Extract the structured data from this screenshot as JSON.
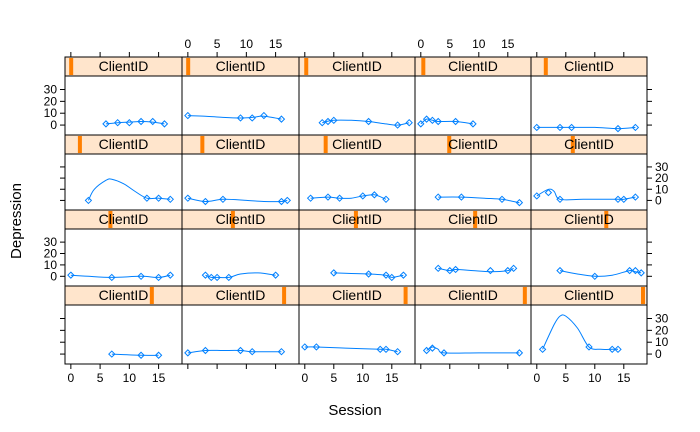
{
  "chart_data": {
    "type": "line",
    "layout": "lattice 5 columns x 4 rows, one panel per client",
    "xlabel": "Session",
    "ylabel": "Depression",
    "strip_label": "ClientID",
    "xlim": [
      -1,
      19
    ],
    "ylim": [
      -5,
      38
    ],
    "x_ticks": [
      "0",
      "5",
      "10",
      "15"
    ],
    "y_ticks": [
      "0",
      "10",
      "20",
      "30"
    ],
    "colors": {
      "strip_bg": "#FFE5CC",
      "strip_marker": "#FF7F00",
      "series": "#0080FF",
      "frame": "#000000"
    },
    "panels": [
      {
        "strip": "ClientID",
        "marker": 0.02,
        "points": [
          [
            6,
            1
          ],
          [
            8,
            2
          ],
          [
            10,
            2
          ],
          [
            12,
            3
          ],
          [
            14,
            3
          ],
          [
            16,
            1
          ]
        ],
        "curve": [
          [
            6,
            1
          ],
          [
            8,
            2
          ],
          [
            10,
            2.5
          ],
          [
            12,
            3
          ],
          [
            14,
            2.5
          ],
          [
            16,
            1
          ]
        ]
      },
      {
        "strip": "ClientID",
        "marker": 0.02,
        "points": [
          [
            0,
            8
          ],
          [
            9,
            6
          ],
          [
            11,
            6
          ],
          [
            13,
            8
          ],
          [
            16,
            5
          ]
        ],
        "curve": [
          [
            0,
            8
          ],
          [
            3,
            7.5
          ],
          [
            6,
            6.5
          ],
          [
            9,
            6
          ],
          [
            11,
            6.5
          ],
          [
            13,
            7.5
          ],
          [
            16,
            5
          ]
        ]
      },
      {
        "strip": "ClientID",
        "marker": 0.03,
        "points": [
          [
            3,
            2
          ],
          [
            4,
            3
          ],
          [
            5,
            4
          ],
          [
            11,
            3
          ],
          [
            16,
            0
          ],
          [
            18,
            2
          ]
        ],
        "curve": [
          [
            3,
            2
          ],
          [
            5,
            4
          ],
          [
            8,
            4
          ],
          [
            11,
            3
          ],
          [
            14,
            1
          ],
          [
            16,
            0
          ],
          [
            18,
            2
          ]
        ]
      },
      {
        "strip": "ClientID",
        "marker": 0.04,
        "points": [
          [
            0,
            1
          ],
          [
            1,
            5
          ],
          [
            2,
            4
          ],
          [
            3,
            3
          ],
          [
            6,
            3
          ],
          [
            9,
            1
          ]
        ],
        "curve": [
          [
            0,
            1
          ],
          [
            1,
            5
          ],
          [
            2,
            4
          ],
          [
            3,
            3
          ],
          [
            6,
            3
          ],
          [
            9,
            1
          ]
        ]
      },
      {
        "strip": "ClientID",
        "marker": 0.1,
        "points": [
          [
            0,
            -2
          ],
          [
            4,
            -2
          ],
          [
            6,
            -2
          ],
          [
            14,
            -3
          ],
          [
            17,
            -2
          ]
        ],
        "curve": [
          [
            0,
            -2
          ],
          [
            4,
            -2
          ],
          [
            6,
            -2
          ],
          [
            10,
            -2
          ],
          [
            14,
            -3
          ],
          [
            17,
            -2
          ]
        ]
      },
      {
        "strip": "ClientID",
        "marker": 0.1,
        "points": [
          [
            3,
            0
          ],
          [
            13,
            2
          ],
          [
            15,
            2
          ],
          [
            17,
            1
          ]
        ],
        "curve": [
          [
            3,
            0
          ],
          [
            4,
            10
          ],
          [
            6,
            18
          ],
          [
            7,
            19
          ],
          [
            9,
            15
          ],
          [
            11,
            8
          ],
          [
            13,
            2
          ],
          [
            15,
            2
          ],
          [
            17,
            1
          ]
        ]
      },
      {
        "strip": "ClientID",
        "marker": 0.15,
        "points": [
          [
            0,
            2
          ],
          [
            3,
            -1
          ],
          [
            6,
            1
          ],
          [
            16,
            -1
          ],
          [
            17,
            0
          ]
        ],
        "curve": [
          [
            0,
            2
          ],
          [
            3,
            -1
          ],
          [
            6,
            1
          ],
          [
            10,
            0
          ],
          [
            13,
            -1
          ],
          [
            16,
            -1
          ],
          [
            17,
            0
          ]
        ]
      },
      {
        "strip": "ClientID",
        "marker": 0.21,
        "points": [
          [
            1,
            2
          ],
          [
            4,
            3
          ],
          [
            6,
            2
          ],
          [
            10,
            4
          ],
          [
            12,
            5
          ],
          [
            14,
            1
          ]
        ],
        "curve": [
          [
            1,
            2
          ],
          [
            4,
            3
          ],
          [
            6,
            2
          ],
          [
            8,
            2
          ],
          [
            10,
            4
          ],
          [
            12,
            5
          ],
          [
            14,
            1
          ]
        ]
      },
      {
        "strip": "ClientID",
        "marker": 0.28,
        "points": [
          [
            3,
            3
          ],
          [
            7,
            3
          ],
          [
            14,
            1
          ],
          [
            17,
            -2
          ]
        ],
        "curve": [
          [
            3,
            3
          ],
          [
            7,
            3
          ],
          [
            11,
            2
          ],
          [
            14,
            1
          ],
          [
            16,
            -1
          ],
          [
            17,
            -2
          ]
        ]
      },
      {
        "strip": "ClientID",
        "marker": 0.35,
        "points": [
          [
            0,
            4
          ],
          [
            2,
            7
          ],
          [
            4,
            1
          ],
          [
            14,
            1
          ],
          [
            15,
            1
          ],
          [
            17,
            3
          ]
        ],
        "curve": [
          [
            0,
            4
          ],
          [
            2,
            10
          ],
          [
            3,
            8
          ],
          [
            4,
            1
          ],
          [
            8,
            1
          ],
          [
            14,
            1
          ],
          [
            15,
            1
          ],
          [
            17,
            3
          ]
        ]
      },
      {
        "strip": "ClientID",
        "marker": 0.38,
        "points": [
          [
            0,
            1
          ],
          [
            7,
            -1
          ],
          [
            12,
            0
          ],
          [
            15,
            -1
          ],
          [
            17,
            1
          ]
        ],
        "curve": [
          [
            0,
            1
          ],
          [
            3,
            0
          ],
          [
            7,
            -1
          ],
          [
            12,
            0
          ],
          [
            15,
            -1
          ],
          [
            17,
            1
          ]
        ]
      },
      {
        "strip": "ClientID",
        "marker": 0.43,
        "points": [
          [
            3,
            1
          ],
          [
            4,
            -1
          ],
          [
            5,
            -1
          ],
          [
            7,
            -1
          ],
          [
            15,
            1
          ]
        ],
        "curve": [
          [
            3,
            1
          ],
          [
            4,
            -1
          ],
          [
            5,
            -1
          ],
          [
            7,
            -1
          ],
          [
            9,
            2
          ],
          [
            12,
            3
          ],
          [
            15,
            1
          ]
        ]
      },
      {
        "strip": "ClientID",
        "marker": 0.49,
        "points": [
          [
            5,
            3
          ],
          [
            11,
            2
          ],
          [
            14,
            1
          ],
          [
            15,
            -1
          ],
          [
            17,
            1
          ]
        ],
        "curve": [
          [
            5,
            3
          ],
          [
            8,
            2.5
          ],
          [
            11,
            2
          ],
          [
            14,
            1
          ],
          [
            15,
            -1
          ],
          [
            17,
            1
          ]
        ]
      },
      {
        "strip": "ClientID",
        "marker": 0.52,
        "points": [
          [
            3,
            7
          ],
          [
            5,
            5
          ],
          [
            6,
            6
          ],
          [
            12,
            5
          ],
          [
            15,
            5
          ],
          [
            16,
            7
          ]
        ],
        "curve": [
          [
            3,
            7
          ],
          [
            5,
            5
          ],
          [
            6,
            6
          ],
          [
            9,
            5
          ],
          [
            12,
            4
          ],
          [
            15,
            5
          ],
          [
            16,
            7
          ]
        ]
      },
      {
        "strip": "ClientID",
        "marker": 0.66,
        "points": [
          [
            4,
            5
          ],
          [
            10,
            0
          ],
          [
            16,
            5
          ],
          [
            17,
            5
          ],
          [
            18,
            3
          ]
        ],
        "curve": [
          [
            4,
            5
          ],
          [
            7,
            2
          ],
          [
            10,
            0
          ],
          [
            13,
            1
          ],
          [
            16,
            5
          ],
          [
            17,
            4
          ],
          [
            18,
            3
          ]
        ]
      },
      {
        "strip": "ClientID",
        "marker": 0.76,
        "points": [
          [
            7,
            0
          ],
          [
            12,
            -1
          ],
          [
            15,
            -1
          ]
        ],
        "curve": [
          [
            7,
            0
          ],
          [
            12,
            -1
          ],
          [
            15,
            -1
          ]
        ]
      },
      {
        "strip": "ClientID",
        "marker": 0.9,
        "points": [
          [
            0,
            1
          ],
          [
            3,
            3
          ],
          [
            9,
            3
          ],
          [
            11,
            2
          ],
          [
            16,
            2
          ]
        ],
        "curve": [
          [
            0,
            1
          ],
          [
            3,
            3
          ],
          [
            6,
            3
          ],
          [
            9,
            3
          ],
          [
            11,
            2
          ],
          [
            16,
            2
          ]
        ]
      },
      {
        "strip": "ClientID",
        "marker": 0.95,
        "points": [
          [
            0,
            6
          ],
          [
            2,
            6
          ],
          [
            13,
            4
          ],
          [
            14,
            4
          ],
          [
            16,
            2
          ]
        ],
        "curve": [
          [
            0,
            6
          ],
          [
            2,
            6
          ],
          [
            7,
            5
          ],
          [
            13,
            4
          ],
          [
            14,
            4
          ],
          [
            16,
            2
          ]
        ]
      },
      {
        "strip": "ClientID",
        "marker": 0.98,
        "points": [
          [
            1,
            3
          ],
          [
            2,
            5
          ],
          [
            4,
            1
          ],
          [
            17,
            1
          ]
        ],
        "curve": [
          [
            1,
            3
          ],
          [
            2,
            6
          ],
          [
            3,
            4
          ],
          [
            4,
            1
          ],
          [
            10,
            1
          ],
          [
            17,
            1
          ]
        ]
      },
      {
        "strip": "ClientID",
        "marker": 1.0,
        "points": [
          [
            1,
            4
          ],
          [
            9,
            6
          ],
          [
            13,
            4
          ],
          [
            14,
            4
          ]
        ],
        "curve": [
          [
            1,
            4
          ],
          [
            3,
            25
          ],
          [
            4,
            32
          ],
          [
            5,
            32
          ],
          [
            7,
            22
          ],
          [
            9,
            6
          ],
          [
            11,
            4
          ],
          [
            13,
            4
          ],
          [
            14,
            4
          ]
        ]
      }
    ]
  }
}
